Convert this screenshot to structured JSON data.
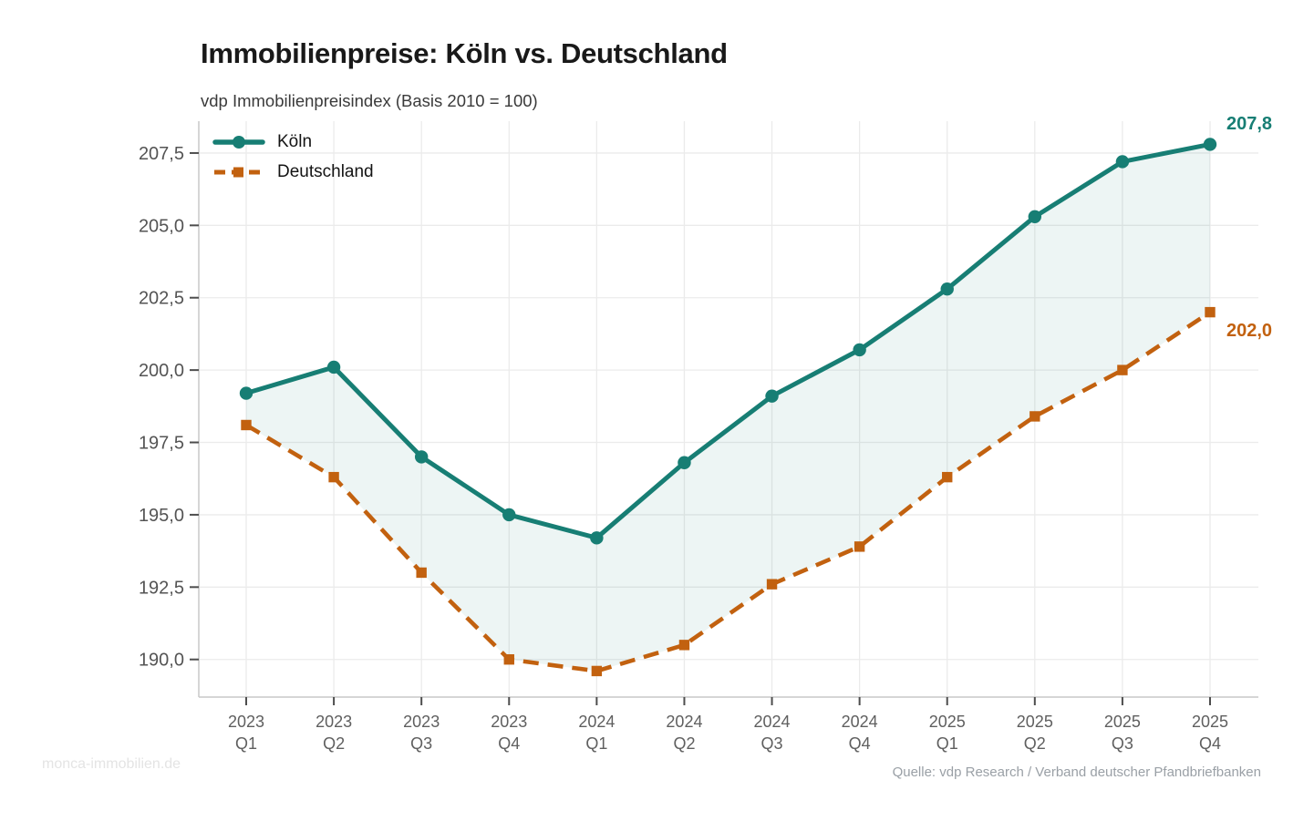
{
  "header": {
    "title": "Immobilienpreise: Köln vs. Deutschland",
    "subtitle": "vdp Immobilienpreisindex (Basis 2010 = 100)"
  },
  "chart_data": {
    "type": "line",
    "categories": [
      {
        "year": "2023",
        "quarter": "Q1"
      },
      {
        "year": "2023",
        "quarter": "Q2"
      },
      {
        "year": "2023",
        "quarter": "Q3"
      },
      {
        "year": "2023",
        "quarter": "Q4"
      },
      {
        "year": "2024",
        "quarter": "Q1"
      },
      {
        "year": "2024",
        "quarter": "Q2"
      },
      {
        "year": "2024",
        "quarter": "Q3"
      },
      {
        "year": "2024",
        "quarter": "Q4"
      },
      {
        "year": "2025",
        "quarter": "Q1"
      },
      {
        "year": "2025",
        "quarter": "Q2"
      },
      {
        "year": "2025",
        "quarter": "Q3"
      },
      {
        "year": "2025",
        "quarter": "Q4"
      }
    ],
    "series": [
      {
        "name": "Köln",
        "color": "#177e74",
        "line_style": "solid",
        "marker": "circle",
        "values": [
          199.2,
          200.1,
          197.0,
          195.0,
          194.2,
          196.8,
          199.1,
          200.7,
          202.8,
          205.3,
          207.2,
          207.8
        ],
        "end_label": "207,8"
      },
      {
        "name": "Deutschland",
        "color": "#c2610f",
        "line_style": "dashed",
        "marker": "square",
        "values": [
          198.1,
          196.3,
          193.0,
          190.0,
          189.6,
          190.5,
          192.6,
          193.9,
          196.3,
          198.4,
          200.0,
          202.0
        ],
        "end_label": "202,0"
      }
    ],
    "yticks": [
      190.0,
      192.5,
      195.0,
      197.5,
      200.0,
      202.5,
      205.0,
      207.5
    ],
    "ytick_labels": [
      "190,0",
      "192,5",
      "195,0",
      "197,5",
      "200,0",
      "202,5",
      "205,0",
      "207,5"
    ],
    "ylim": [
      188.7,
      208.6
    ],
    "grid": true,
    "fill_between_series": true,
    "legend_position": "top-left",
    "colors": {
      "grid": "#ebebeb",
      "spine": "#c9c9c9",
      "tick": "#4d4d4d",
      "y_tick_label": "#545454",
      "x_tick_label": "#5f5f5f",
      "fill_opacity": 0.08
    }
  },
  "footer": {
    "watermark": "monca-immobilien.de",
    "source": "Quelle: vdp Research / Verband deutscher Pfandbriefbanken"
  }
}
